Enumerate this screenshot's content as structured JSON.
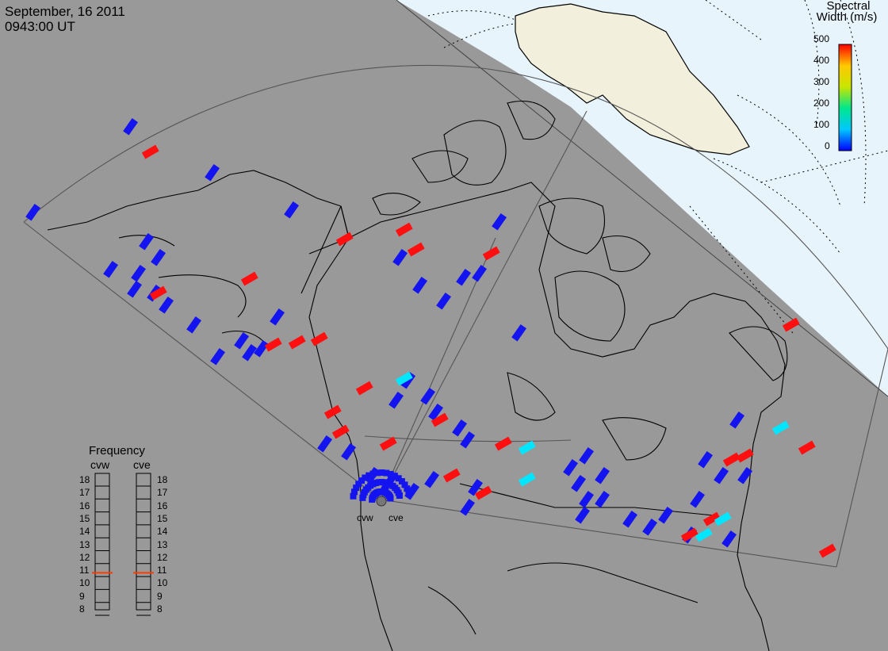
{
  "header": {
    "date": "September, 16 2011",
    "time": "0943:00 UT"
  },
  "scale": {
    "title_line1": "Spectral",
    "title_line2": "Width (m/s)",
    "ticks": [
      "500",
      "400",
      "300",
      "200",
      "100",
      "0"
    ],
    "colors": [
      "#0000ff",
      "#00c8ff",
      "#00e68c",
      "#c8e600",
      "#ffc800",
      "#ff0000"
    ]
  },
  "frequency": {
    "title": "Frequency",
    "radars": [
      "cvw",
      "cve"
    ],
    "levels": [
      "18",
      "17",
      "16",
      "15",
      "14",
      "13",
      "12",
      "11",
      "10",
      "9",
      "8"
    ],
    "cvw_mhz": 10.8,
    "cve_mhz": 10.8
  },
  "map_labels": {
    "site_west": "cvw",
    "site_east": "cve"
  },
  "colors": {
    "background": "#999999",
    "daylight": "#e8f4fc",
    "land_day": "#f2f0dc",
    "low_width": "#1414f0",
    "high_width": "#ff0f0f",
    "mid_width": "#00e6ff"
  },
  "echoes": {
    "blue": [
      [
        165,
        160
      ],
      [
        268,
        218
      ],
      [
        368,
        265
      ],
      [
        42,
        268
      ],
      [
        185,
        305
      ],
      [
        200,
        325
      ],
      [
        175,
        345
      ],
      [
        195,
        370
      ],
      [
        210,
        385
      ],
      [
        170,
        365
      ],
      [
        140,
        340
      ],
      [
        245,
        410
      ],
      [
        275,
        450
      ],
      [
        305,
        430
      ],
      [
        315,
        445
      ],
      [
        330,
        440
      ],
      [
        350,
        400
      ],
      [
        505,
        325
      ],
      [
        530,
        360
      ],
      [
        560,
        380
      ],
      [
        585,
        350
      ],
      [
        605,
        345
      ],
      [
        630,
        280
      ],
      [
        655,
        420
      ],
      [
        515,
        480
      ],
      [
        500,
        505
      ],
      [
        540,
        500
      ],
      [
        550,
        520
      ],
      [
        580,
        540
      ],
      [
        590,
        555
      ],
      [
        410,
        560
      ],
      [
        440,
        570
      ],
      [
        470,
        600
      ],
      [
        490,
        610
      ],
      [
        520,
        620
      ],
      [
        545,
        605
      ],
      [
        600,
        615
      ],
      [
        590,
        640
      ],
      [
        720,
        590
      ],
      [
        730,
        610
      ],
      [
        740,
        630
      ],
      [
        735,
        650
      ],
      [
        760,
        600
      ],
      [
        760,
        630
      ],
      [
        795,
        655
      ],
      [
        820,
        665
      ],
      [
        840,
        650
      ],
      [
        870,
        675
      ],
      [
        880,
        630
      ],
      [
        890,
        580
      ],
      [
        930,
        530
      ],
      [
        940,
        600
      ],
      [
        910,
        600
      ],
      [
        920,
        680
      ],
      [
        740,
        575
      ]
    ],
    "red": [
      [
        190,
        192
      ],
      [
        315,
        352
      ],
      [
        345,
        435
      ],
      [
        375,
        432
      ],
      [
        403,
        428
      ],
      [
        435,
        302
      ],
      [
        510,
        290
      ],
      [
        525,
        315
      ],
      [
        620,
        320
      ],
      [
        200,
        370
      ],
      [
        460,
        490
      ],
      [
        420,
        520
      ],
      [
        430,
        545
      ],
      [
        490,
        560
      ],
      [
        555,
        530
      ],
      [
        635,
        560
      ],
      [
        570,
        600
      ],
      [
        610,
        622
      ],
      [
        923,
        580
      ],
      [
        940,
        575
      ],
      [
        998,
        410
      ],
      [
        1018,
        565
      ],
      [
        1044,
        695
      ],
      [
        870,
        675
      ],
      [
        898,
        655
      ]
    ],
    "cyan": [
      [
        510,
        478
      ],
      [
        985,
        540
      ],
      [
        665,
        605
      ],
      [
        665,
        565
      ],
      [
        888,
        675
      ],
      [
        912,
        655
      ]
    ]
  }
}
